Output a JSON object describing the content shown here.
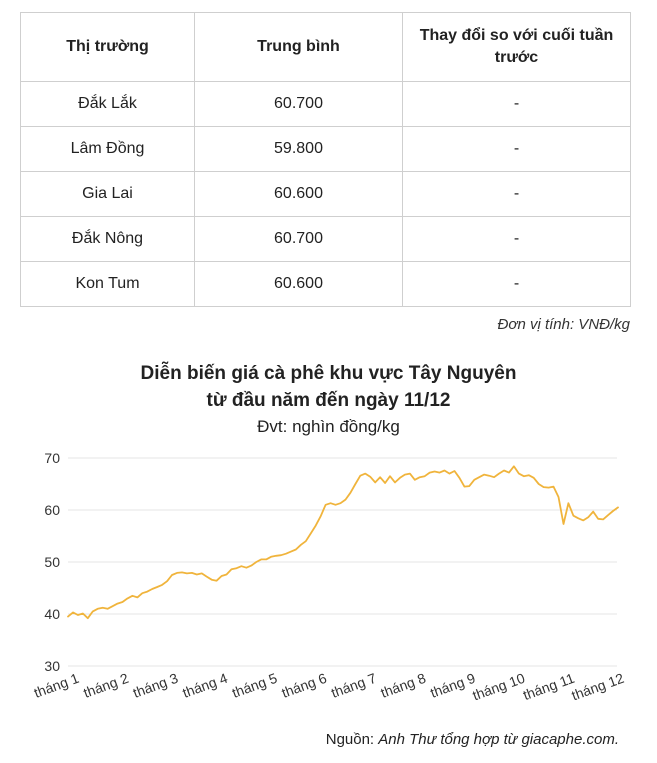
{
  "table": {
    "headers": [
      "Thị trường",
      "Trung bình",
      "Thay đổi so với cuối tuần trước"
    ],
    "rows": [
      [
        "Đắk Lắk",
        "60.700",
        "-"
      ],
      [
        "Lâm Đồng",
        "59.800",
        "-"
      ],
      [
        "Gia Lai",
        "60.600",
        "-"
      ],
      [
        "Đắk Nông",
        "60.700",
        "-"
      ],
      [
        "Kon Tum",
        "60.600",
        "-"
      ]
    ]
  },
  "unit_note": "Đơn vị tính: VNĐ/kg",
  "chart_data": {
    "type": "line",
    "title_line1": "Diễn biến giá cà phê khu vực Tây Nguyên",
    "title_line2": "từ đầu năm đến ngày 11/12",
    "subtitle": "Đvt: nghìn đồng/kg",
    "ylim": [
      30,
      70
    ],
    "yticks": [
      30,
      40,
      50,
      60,
      70
    ],
    "grid": true,
    "line_color": "#f0b43c",
    "categories": [
      "tháng 1",
      "tháng 2",
      "tháng 3",
      "tháng 4",
      "tháng 5",
      "tháng 6",
      "tháng 7",
      "tháng 8",
      "tháng 9",
      "tháng 10",
      "tháng 11",
      "tháng 12"
    ],
    "x": [
      0,
      0.1,
      0.2,
      0.3,
      0.4,
      0.5,
      0.6,
      0.7,
      0.8,
      0.9,
      1.0,
      1.1,
      1.2,
      1.3,
      1.4,
      1.5,
      1.6,
      1.7,
      1.8,
      1.9,
      2.0,
      2.1,
      2.2,
      2.3,
      2.4,
      2.5,
      2.6,
      2.7,
      2.8,
      2.9,
      3.0,
      3.1,
      3.2,
      3.3,
      3.4,
      3.5,
      3.6,
      3.7,
      3.8,
      3.9,
      4.0,
      4.1,
      4.2,
      4.3,
      4.4,
      4.5,
      4.6,
      4.7,
      4.8,
      4.9,
      5.0,
      5.1,
      5.2,
      5.3,
      5.4,
      5.5,
      5.6,
      5.7,
      5.8,
      5.9,
      6.0,
      6.1,
      6.2,
      6.3,
      6.4,
      6.5,
      6.6,
      6.7,
      6.8,
      6.9,
      7.0,
      7.1,
      7.2,
      7.3,
      7.4,
      7.5,
      7.6,
      7.7,
      7.8,
      7.9,
      8.0,
      8.1,
      8.2,
      8.3,
      8.4,
      8.5,
      8.6,
      8.7,
      8.8,
      8.9,
      9.0,
      9.1,
      9.2,
      9.3,
      9.4,
      9.5,
      9.6,
      9.7,
      9.8,
      9.9,
      10.0,
      10.1,
      10.2,
      10.3,
      10.4,
      10.5,
      10.6,
      10.7,
      10.8,
      10.9,
      11.0,
      11.1
    ],
    "y": [
      39.5,
      40.3,
      39.8,
      40.1,
      39.2,
      40.5,
      41.0,
      41.2,
      41.0,
      41.5,
      42.0,
      42.3,
      43.0,
      43.5,
      43.2,
      44.0,
      44.3,
      44.8,
      45.2,
      45.6,
      46.3,
      47.5,
      47.9,
      48.0,
      47.8,
      47.9,
      47.6,
      47.8,
      47.2,
      46.6,
      46.4,
      47.3,
      47.6,
      48.6,
      48.8,
      49.2,
      48.9,
      49.3,
      50.0,
      50.5,
      50.5,
      51.0,
      51.2,
      51.3,
      51.6,
      52.0,
      52.4,
      53.3,
      54.0,
      55.5,
      57.0,
      58.8,
      61.0,
      61.3,
      61.0,
      61.3,
      62.0,
      63.3,
      65.0,
      66.6,
      67.0,
      66.4,
      65.3,
      66.3,
      65.2,
      66.5,
      65.3,
      66.2,
      66.8,
      67.0,
      65.8,
      66.3,
      66.5,
      67.2,
      67.4,
      67.2,
      67.6,
      67.0,
      67.5,
      66.2,
      64.5,
      64.6,
      65.8,
      66.3,
      66.8,
      66.6,
      66.3,
      67.0,
      67.6,
      67.2,
      68.4,
      67.0,
      66.5,
      66.7,
      66.2,
      65.0,
      64.4,
      64.3,
      64.5,
      62.5,
      57.3,
      61.3,
      58.9,
      58.4,
      58.0,
      58.6,
      59.7,
      58.3,
      58.2,
      59.0,
      59.8,
      60.5
    ]
  },
  "source": {
    "prefix": "Nguồn: ",
    "text": "Anh Thư tổng hợp từ giacaphe.com."
  }
}
